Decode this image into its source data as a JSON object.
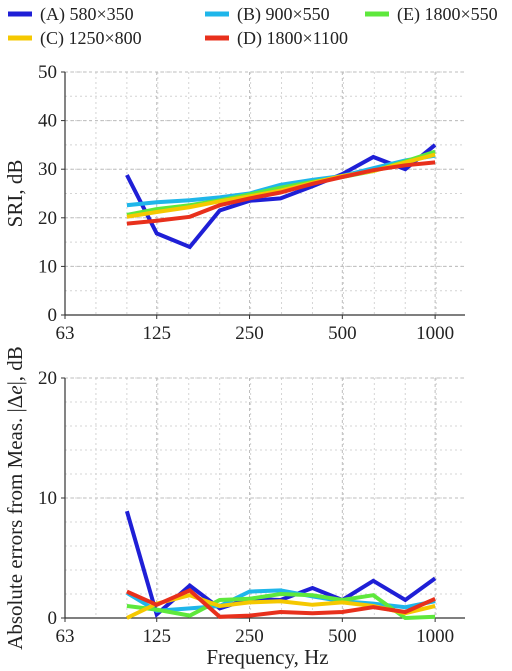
{
  "chart_data": [
    {
      "type": "line",
      "title": "",
      "xlabel": "",
      "ylabel": "SRI, dB",
      "x_scale": "log2",
      "x": [
        100,
        125,
        160,
        200,
        250,
        315,
        400,
        500,
        630,
        800,
        1000
      ],
      "xlim": [
        63,
        1250
      ],
      "xticks": [
        63,
        125,
        250,
        500,
        1000
      ],
      "xtick_labels": [
        "63",
        "125",
        "250",
        "500",
        "1000"
      ],
      "ylim": [
        0,
        50
      ],
      "yticks": [
        0,
        10,
        20,
        30,
        40,
        50
      ],
      "ytick_labels": [
        "0",
        "10",
        "20",
        "30",
        "40",
        "50"
      ],
      "grid": true,
      "series": [
        {
          "name": "(A) 580×350",
          "color": "#1f1fd6",
          "values": [
            28.8,
            16.8,
            14.0,
            21.5,
            23.5,
            24.0,
            26.5,
            29.0,
            32.5,
            30.0,
            35.0
          ]
        },
        {
          "name": "(B) 900×550",
          "color": "#1fb6ea",
          "values": [
            22.6,
            23.2,
            23.6,
            24.2,
            25.0,
            26.8,
            27.8,
            28.6,
            30.2,
            31.8,
            32.8
          ]
        },
        {
          "name": "(E) 1800×550",
          "color": "#5ee83c",
          "values": [
            20.6,
            21.8,
            22.6,
            23.6,
            24.8,
            26.2,
            27.4,
            28.4,
            29.6,
            31.6,
            33.6
          ]
        },
        {
          "name": "(C) 1250×800",
          "color": "#f5c800",
          "values": [
            20.2,
            21.2,
            22.2,
            23.4,
            24.4,
            25.6,
            27.2,
            28.6,
            29.6,
            31.4,
            33.0
          ]
        },
        {
          "name": "(D) 1800×1100",
          "color": "#e8301c",
          "values": [
            18.8,
            19.4,
            20.2,
            22.6,
            24.0,
            25.2,
            27.0,
            28.4,
            29.8,
            30.8,
            31.4
          ]
        }
      ]
    },
    {
      "type": "line",
      "title": "",
      "xlabel": "Frequency, Hz",
      "ylabel_prefix": "Absolute errors from Meas. |Δ",
      "ylabel_italic": "e",
      "ylabel_suffix": "|, dB",
      "x_scale": "log2",
      "x": [
        100,
        125,
        160,
        200,
        250,
        315,
        400,
        500,
        630,
        800,
        1000
      ],
      "xlim": [
        63,
        1250
      ],
      "xticks": [
        63,
        125,
        250,
        500,
        1000
      ],
      "xtick_labels": [
        "63",
        "125",
        "250",
        "500",
        "1000"
      ],
      "ylim": [
        0,
        20
      ],
      "yticks": [
        0,
        10,
        20
      ],
      "ytick_labels": [
        "0",
        "10",
        "20"
      ],
      "grid": true,
      "series": [
        {
          "name": "(A) 580×350",
          "color": "#1f1fd6",
          "values": [
            8.9,
            0.3,
            2.7,
            0.8,
            1.6,
            1.5,
            2.5,
            1.5,
            3.1,
            1.5,
            3.3
          ]
        },
        {
          "name": "(B) 900×550",
          "color": "#1fb6ea",
          "values": [
            2.1,
            0.6,
            0.8,
            1.0,
            2.2,
            2.3,
            1.8,
            1.4,
            1.2,
            0.9,
            1.4
          ]
        },
        {
          "name": "(E) 1800×550",
          "color": "#5ee83c",
          "values": [
            1.0,
            0.7,
            0.2,
            1.5,
            1.6,
            2.0,
            1.9,
            1.5,
            1.9,
            0.0,
            0.1
          ]
        },
        {
          "name": "(C) 1250×800",
          "color": "#f5c800",
          "values": [
            0.0,
            1.2,
            1.9,
            1.0,
            1.3,
            1.4,
            1.1,
            1.3,
            1.0,
            0.4,
            1.0
          ]
        },
        {
          "name": "(D) 1800×1100",
          "color": "#e8301c",
          "values": [
            2.2,
            1.1,
            2.3,
            0.1,
            0.2,
            0.5,
            0.4,
            0.5,
            0.9,
            0.5,
            1.6
          ]
        }
      ]
    }
  ]
}
